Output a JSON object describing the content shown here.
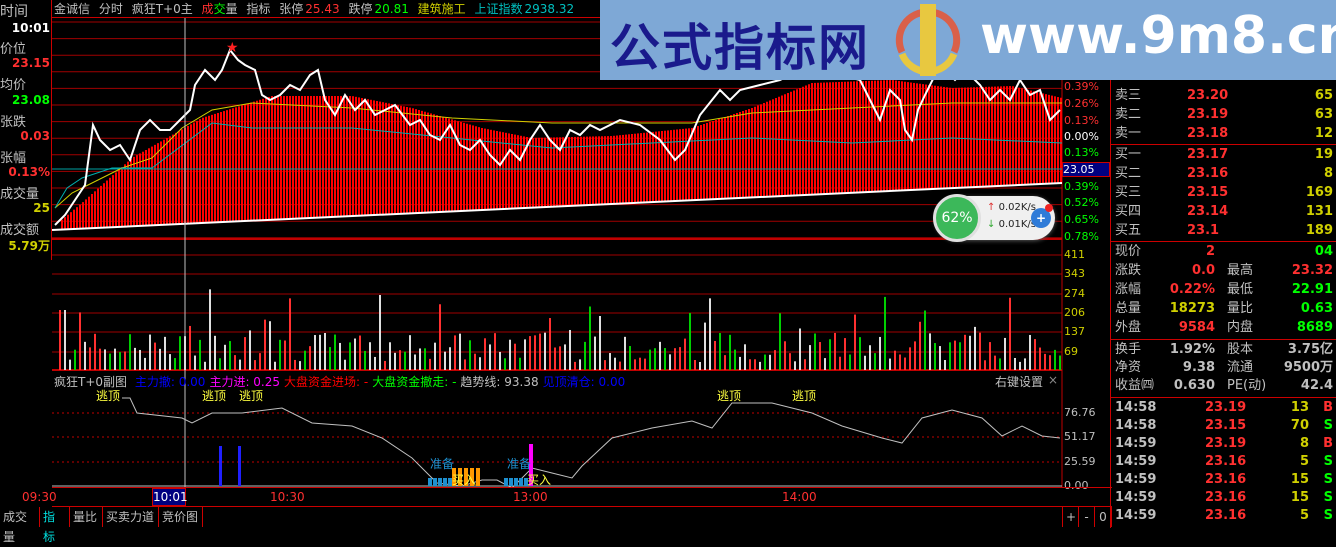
{
  "header": {
    "stock": "金诚信",
    "mode": "分时",
    "indicator": "疯狂T+0主",
    "vol_cheng": "成",
    "vol_jiao": "交",
    "vol_liang": "量",
    "zhibiao": "指标",
    "limit_up_label": "张停",
    "limit_up": "25.43",
    "limit_down_label": "跌停",
    "limit_down": "20.81",
    "sector": "建筑施工",
    "index_name": "上证指数",
    "index_value": "2938.32"
  },
  "left_panel": {
    "time_label": "时间",
    "time": "10:01",
    "price_label": "价位",
    "price": "23.15",
    "avg_label": "均价",
    "avg": "23.08",
    "change_label": "张跌",
    "change": "0.03",
    "pct_label": "张幅",
    "pct": "0.13%",
    "vol_label": "成交量",
    "vol": "25",
    "amount_label": "成交额",
    "amount": "5.79万"
  },
  "price_axis": [
    "0.39%",
    "0.26%",
    "0.13%",
    "0.00%",
    "0.13%",
    "23.05",
    "0.39%",
    "0.52%",
    "0.65%",
    "0.78%"
  ],
  "volume_axis": [
    "411",
    "343",
    "274",
    "206",
    "137",
    "69"
  ],
  "sub_chart": {
    "name": "疯狂T+0副图",
    "items": [
      {
        "label": "主力撤: 0.00",
        "color": "#0000ff"
      },
      {
        "label": "主力进: 0.25",
        "color": "#ff00ff"
      },
      {
        "label": "大盘资金进场: -",
        "color": "#ff0000"
      },
      {
        "label": "大盘资金撤走: -",
        "color": "#00ff00"
      },
      {
        "label": "趋势线: 93.38",
        "color": "#c0c0c0"
      },
      {
        "label": "见顶清仓: 0.00",
        "color": "#0000ff"
      }
    ],
    "settings": "右键设置",
    "close": "×",
    "axis": [
      "76.76",
      "51.17",
      "25.59",
      "0.00"
    ],
    "signals": {
      "escape": "逃顶",
      "prepare": "准备",
      "buy": "买入"
    }
  },
  "time_axis": {
    "labels": [
      "09:30",
      "10:30",
      "13:00",
      "14:00"
    ],
    "cursor": "10:01"
  },
  "tabs": [
    {
      "label": "成交量"
    },
    {
      "label": "指标",
      "active": true
    },
    {
      "label": "量比"
    },
    {
      "label": "买卖力道"
    },
    {
      "label": "竞价图"
    }
  ],
  "zoom_buttons": [
    "+",
    "-",
    "0"
  ],
  "banner": {
    "title": "公式指标网",
    "url": "www.9m8.cn",
    "logo_text": "www.9m8.cn"
  },
  "order_book": {
    "asks": [
      {
        "label": "卖三",
        "price": "23.20",
        "vol": "65"
      },
      {
        "label": "卖二",
        "price": "23.19",
        "vol": "63"
      },
      {
        "label": "卖一",
        "price": "23.18",
        "vol": "12"
      }
    ],
    "bids": [
      {
        "label": "买一",
        "price": "23.17",
        "vol": "19"
      },
      {
        "label": "买二",
        "price": "23.16",
        "vol": "8"
      },
      {
        "label": "买三",
        "price": "23.15",
        "vol": "169"
      },
      {
        "label": "买四",
        "price": "23.14",
        "vol": "131"
      },
      {
        "label": "买五",
        "price": "23.1",
        "vol": "189"
      }
    ]
  },
  "quote": [
    {
      "l1": "现价",
      "v1": "2",
      "l2": "",
      "v2": "04",
      "c1": "#ff3030",
      "c2": "#00ff00"
    },
    {
      "l1": "涨跌",
      "v1": "0.0",
      "l2": "最高",
      "v2": "23.32",
      "c1": "#ff3030",
      "c2": "#ff3030"
    },
    {
      "l1": "涨幅",
      "v1": "0.22%",
      "l2": "最低",
      "v2": "22.91",
      "c1": "#ff3030",
      "c2": "#00ff00"
    },
    {
      "l1": "总量",
      "v1": "18273",
      "l2": "量比",
      "v2": "0.63",
      "c1": "#d0d000",
      "c2": "#00ff00"
    },
    {
      "l1": "外盘",
      "v1": "9584",
      "l2": "内盘",
      "v2": "8689",
      "c1": "#ff3030",
      "c2": "#00ff00"
    }
  ],
  "finance": [
    {
      "l1": "换手",
      "v1": "1.92%",
      "l2": "股本",
      "v2": "3.75亿"
    },
    {
      "l1": "净资",
      "v1": "9.38",
      "l2": "流通",
      "v2": "9500万"
    },
    {
      "l1": "收益㈣",
      "v1": "0.630",
      "l2": "PE(动)",
      "v2": "42.4"
    }
  ],
  "ticks": [
    {
      "time": "14:58",
      "price": "23.19",
      "vol": "13",
      "side": "B"
    },
    {
      "time": "14:58",
      "price": "23.15",
      "vol": "70",
      "side": "S"
    },
    {
      "time": "14:59",
      "price": "23.19",
      "vol": "8",
      "side": "B"
    },
    {
      "time": "14:59",
      "price": "23.16",
      "vol": "5",
      "side": "S"
    },
    {
      "time": "14:59",
      "price": "23.16",
      "vol": "15",
      "side": "S"
    },
    {
      "time": "14:59",
      "price": "23.16",
      "vol": "15",
      "side": "S"
    },
    {
      "time": "14:59",
      "price": "23.16",
      "vol": "5",
      "side": "S"
    }
  ],
  "widget": {
    "percent": "62%",
    "up": "0.02K/s",
    "down": "0.01K/s"
  },
  "colors": {
    "up": "#ff3030",
    "down": "#00ff00",
    "grid": "#c00000",
    "banner": "#7ea8d6"
  }
}
